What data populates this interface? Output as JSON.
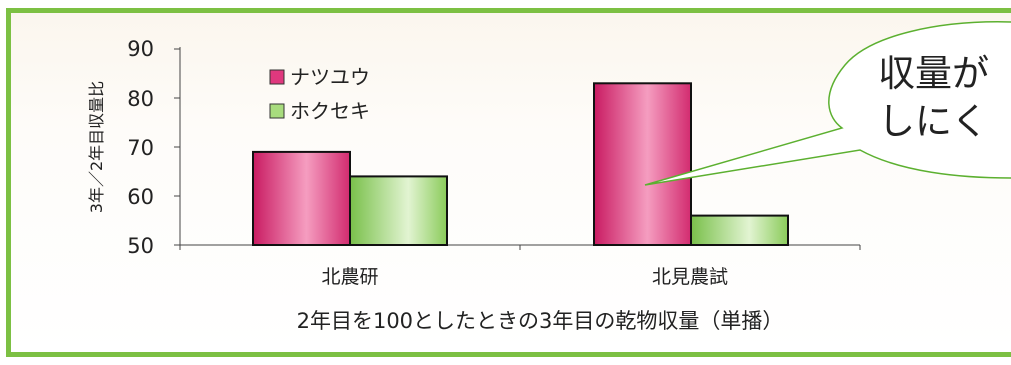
{
  "chart_data": {
    "type": "bar",
    "categories": [
      "北農研",
      "北見農試"
    ],
    "series": [
      {
        "name": "ナツユウ",
        "values": [
          69,
          83
        ]
      },
      {
        "name": "ホクセキ",
        "values": [
          64,
          56
        ]
      }
    ],
    "ylim": [
      50,
      90
    ],
    "yticks": [
      "90",
      "80",
      "70",
      "60",
      "50"
    ],
    "ylabel": "3年／2年目収量比",
    "xlabel": "2年目を100としたときの3年目の乾物収量（単播）",
    "title": "",
    "legend_position": "top-left",
    "grid": false
  },
  "callout": {
    "line1": "収量が",
    "line2": "しにく"
  },
  "colors": {
    "border": "#7cc043",
    "series1": "#e0387e",
    "series2": "#8fcf5f"
  }
}
